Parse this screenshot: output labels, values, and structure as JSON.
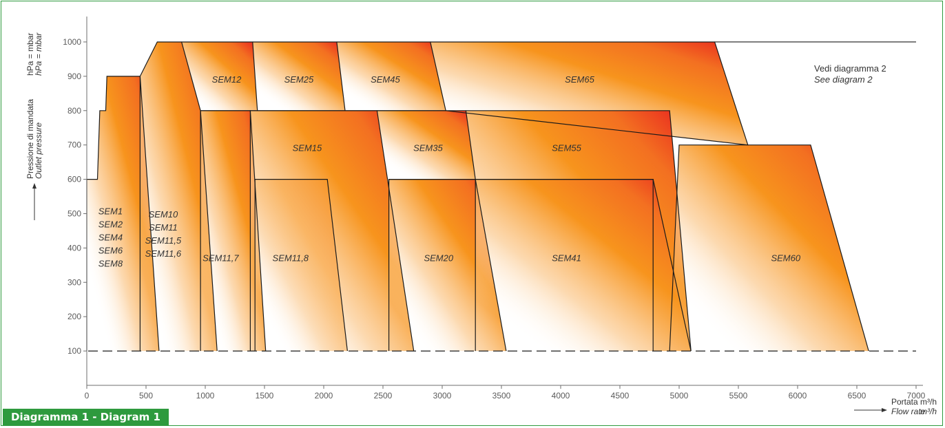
{
  "caption": "Diagramma 1 - Diagram 1",
  "note": {
    "line1": "Vedi diagramma 2",
    "line2": "See diagram 2"
  },
  "colors": {
    "frame": "#2e9a3e",
    "gradient_top": "#e8201f",
    "gradient_mid": "#f7941d",
    "gradient_end": "#ffffff",
    "axis": "#6e6e6e"
  },
  "chart_data": {
    "type": "area",
    "title": "Diagramma 1 - Diagram 1",
    "ylabel": {
      "it": "Pressione di mandata",
      "en": "Outlet pressure",
      "unit_it": "hPa = mbar",
      "unit_en": "hPa = mbar"
    },
    "xlabel": {
      "it": "Portata",
      "en": "Flow rate",
      "unit_it": "m³/h",
      "unit_en": "m³/h"
    },
    "x_ticks": [
      "0",
      "500",
      "1000",
      "1500",
      "2000",
      "2500",
      "3000",
      "3500",
      "4000",
      "4500",
      "5000",
      "5500",
      "6000",
      "6500",
      "7000"
    ],
    "y_ticks": [
      "100",
      "200",
      "300",
      "400",
      "500",
      "600",
      "700",
      "800",
      "900",
      "1000"
    ],
    "xlim": [
      0,
      7000
    ],
    "ylim": [
      0,
      1050
    ],
    "grid": false,
    "baseline_pressure": 100,
    "series": [
      {
        "name": "SEM1 SEM2 SEM4 SEM6 SEM8",
        "label_lines": [
          "SEM1",
          "SEM2",
          "SEM4",
          "SEM6",
          "SEM8"
        ],
        "label_at": [
          200,
          430
        ],
        "outline": [
          [
            0,
            100
          ],
          [
            0,
            600
          ],
          [
            90,
            600
          ],
          [
            110,
            800
          ],
          [
            160,
            800
          ],
          [
            170,
            900
          ],
          [
            450,
            900
          ],
          [
            610,
            100
          ]
        ]
      },
      {
        "name": "SEM10 SEM11 SEM11,5 SEM11,6",
        "label_lines": [
          "SEM10",
          "SEM11",
          "SEM11,5",
          "SEM11,6"
        ],
        "label_at": [
          645,
          440
        ],
        "outline": [
          [
            450,
            100
          ],
          [
            450,
            900
          ],
          [
            595,
            1000
          ],
          [
            800,
            1000
          ],
          [
            960,
            800
          ],
          [
            1100,
            100
          ]
        ]
      },
      {
        "name": "SEM11,7",
        "label_lines": [
          "SEM11,7"
        ],
        "label_at": [
          1130,
          370
        ],
        "outline": [
          [
            960,
            100
          ],
          [
            960,
            800
          ],
          [
            1380,
            800
          ],
          [
            1510,
            100
          ]
        ]
      },
      {
        "name": "SEM11,8",
        "label_lines": [
          "SEM11,8"
        ],
        "label_at": [
          1720,
          370
        ],
        "outline": [
          [
            1420,
            100
          ],
          [
            1420,
            600
          ],
          [
            2030,
            600
          ],
          [
            2200,
            100
          ]
        ]
      },
      {
        "name": "SEM12",
        "label_lines": [
          "SEM12"
        ],
        "label_at": [
          1180,
          890
        ],
        "outline": [
          [
            800,
            1000
          ],
          [
            1400,
            1000
          ],
          [
            1440,
            800
          ],
          [
            960,
            800
          ]
        ]
      },
      {
        "name": "SEM25",
        "label_lines": [
          "SEM25"
        ],
        "label_at": [
          1790,
          890
        ],
        "outline": [
          [
            1400,
            1000
          ],
          [
            2110,
            1000
          ],
          [
            2180,
            800
          ],
          [
            1440,
            800
          ]
        ]
      },
      {
        "name": "SEM45",
        "label_lines": [
          "SEM45"
        ],
        "label_at": [
          2520,
          890
        ],
        "outline": [
          [
            2110,
            1000
          ],
          [
            2900,
            1000
          ],
          [
            3030,
            800
          ],
          [
            2180,
            800
          ]
        ]
      },
      {
        "name": "SEM65",
        "label_lines": [
          "SEM65"
        ],
        "label_at": [
          4160,
          890
        ],
        "outline": [
          [
            2900,
            1000
          ],
          [
            5300,
            1000
          ],
          [
            5580,
            700
          ],
          [
            3030,
            800
          ]
        ]
      },
      {
        "name": "SEM15",
        "label_lines": [
          "SEM15"
        ],
        "label_at": [
          1860,
          690
        ],
        "outline": [
          [
            1380,
            100
          ],
          [
            1380,
            800
          ],
          [
            2450,
            800
          ],
          [
            2760,
            100
          ]
        ]
      },
      {
        "name": "SEM35",
        "label_lines": [
          "SEM35"
        ],
        "label_at": [
          2880,
          690
        ],
        "outline": [
          [
            2450,
            800
          ],
          [
            3200,
            800
          ],
          [
            3280,
            600
          ],
          [
            2550,
            600
          ]
        ]
      },
      {
        "name": "SEM55",
        "label_lines": [
          "SEM55"
        ],
        "label_at": [
          4050,
          690
        ],
        "outline": [
          [
            3200,
            800
          ],
          [
            4920,
            800
          ],
          [
            5100,
            100
          ],
          [
            4780,
            100
          ],
          [
            4780,
            600
          ],
          [
            3280,
            600
          ]
        ]
      },
      {
        "name": "SEM20",
        "label_lines": [
          "SEM20"
        ],
        "label_at": [
          2970,
          370
        ],
        "outline": [
          [
            2550,
            100
          ],
          [
            2550,
            600
          ],
          [
            3280,
            600
          ],
          [
            3540,
            100
          ]
        ]
      },
      {
        "name": "SEM41",
        "label_lines": [
          "SEM41"
        ],
        "label_at": [
          4050,
          370
        ],
        "outline": [
          [
            3280,
            100
          ],
          [
            3280,
            600
          ],
          [
            4780,
            600
          ],
          [
            5100,
            100
          ]
        ]
      },
      {
        "name": "SEM60",
        "label_lines": [
          "SEM60"
        ],
        "label_at": [
          5900,
          370
        ],
        "outline": [
          [
            4920,
            100
          ],
          [
            5000,
            700
          ],
          [
            6110,
            700
          ],
          [
            6600,
            100
          ]
        ]
      }
    ],
    "max_line": {
      "pressure": 1000,
      "x_from": 5300,
      "x_to": 7000
    }
  }
}
